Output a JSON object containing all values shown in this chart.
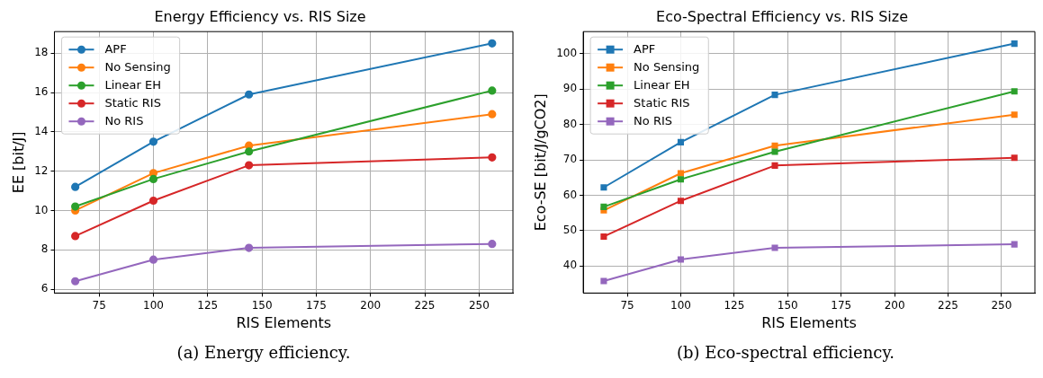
{
  "chart_data": [
    {
      "type": "line",
      "title": "Energy Efficiency vs. RIS Size",
      "xlabel": "RIS Elements",
      "ylabel": "EE [bit/J]",
      "x": [
        64,
        100,
        144,
        256
      ],
      "xlim": [
        54.4,
        265.6
      ],
      "xticks": [
        75,
        100,
        125,
        150,
        175,
        200,
        225,
        250
      ],
      "ylim": [
        5.8,
        19.1
      ],
      "yticks": [
        6,
        8,
        10,
        12,
        14,
        16,
        18
      ],
      "grid": true,
      "legend": "top left",
      "marker": "circle",
      "line_style": "solid",
      "annotations": [
        "(a) Energy efficiency."
      ],
      "series": [
        {
          "name": "APF",
          "color": "#1f77b4",
          "values": [
            11.2,
            13.5,
            15.9,
            18.5
          ]
        },
        {
          "name": "No Sensing",
          "color": "#ff7f0e",
          "values": [
            10.0,
            11.9,
            13.3,
            14.9
          ]
        },
        {
          "name": "Linear EH",
          "color": "#2ca02c",
          "values": [
            10.2,
            11.6,
            13.0,
            16.1
          ]
        },
        {
          "name": "Static RIS",
          "color": "#d62728",
          "values": [
            8.7,
            10.5,
            12.3,
            12.7
          ]
        },
        {
          "name": "No RIS",
          "color": "#9467bd",
          "values": [
            6.4,
            7.5,
            8.1,
            8.3
          ]
        }
      ]
    },
    {
      "type": "line",
      "title": "Eco-Spectral Efficiency vs. RIS Size",
      "xlabel": "RIS Elements",
      "ylabel": "Eco-SE [bit/J/gCO2]",
      "x": [
        64,
        100,
        144,
        256
      ],
      "xlim": [
        54.4,
        265.6
      ],
      "xticks": [
        75,
        100,
        125,
        150,
        175,
        200,
        225,
        250
      ],
      "ylim": [
        32.3,
        106.3
      ],
      "yticks": [
        40,
        50,
        60,
        70,
        80,
        90,
        100
      ],
      "grid": true,
      "legend": "top left",
      "marker": "square",
      "line_style": "solid",
      "annotations": [
        "(b) Eco-spectral efficiency."
      ],
      "series": [
        {
          "name": "APF",
          "color": "#1f77b4",
          "values": [
            62.2,
            75.0,
            88.4,
            102.9
          ]
        },
        {
          "name": "No Sensing",
          "color": "#ff7f0e",
          "values": [
            55.7,
            66.2,
            74.0,
            82.8
          ]
        },
        {
          "name": "Linear EH",
          "color": "#2ca02c",
          "values": [
            56.7,
            64.5,
            72.3,
            89.4
          ]
        },
        {
          "name": "Static RIS",
          "color": "#d62728",
          "values": [
            48.3,
            58.4,
            68.4,
            70.6
          ]
        },
        {
          "name": "No RIS",
          "color": "#9467bd",
          "values": [
            35.7,
            41.8,
            45.1,
            46.1
          ]
        }
      ]
    }
  ]
}
